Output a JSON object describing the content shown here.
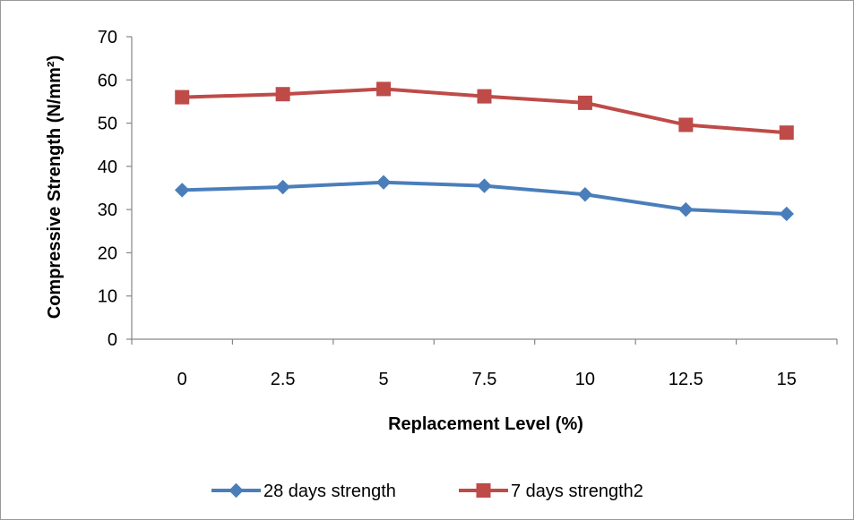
{
  "chart_data": {
    "type": "line",
    "x": [
      "0",
      "2.5",
      "5",
      "7.5",
      "10",
      "12.5",
      "15"
    ],
    "series": [
      {
        "name": "28 days strength",
        "values": [
          34.5,
          35.2,
          36.3,
          35.5,
          33.5,
          30.0,
          29.0
        ],
        "color": "#4a7ebb",
        "marker": "diamond"
      },
      {
        "name": "7 days strength2",
        "values": [
          56.0,
          56.7,
          57.9,
          56.2,
          54.7,
          49.6,
          47.8
        ],
        "color": "#be4b48",
        "marker": "square"
      }
    ],
    "xlabel": "Replacement Level (%)",
    "ylabel": "Compressive Strength (N/mm²)",
    "ylim": [
      0,
      70
    ],
    "yticks": [
      "0",
      "10",
      "20",
      "30",
      "40",
      "50",
      "60",
      "70"
    ],
    "grid": false,
    "legend_position": "bottom"
  }
}
